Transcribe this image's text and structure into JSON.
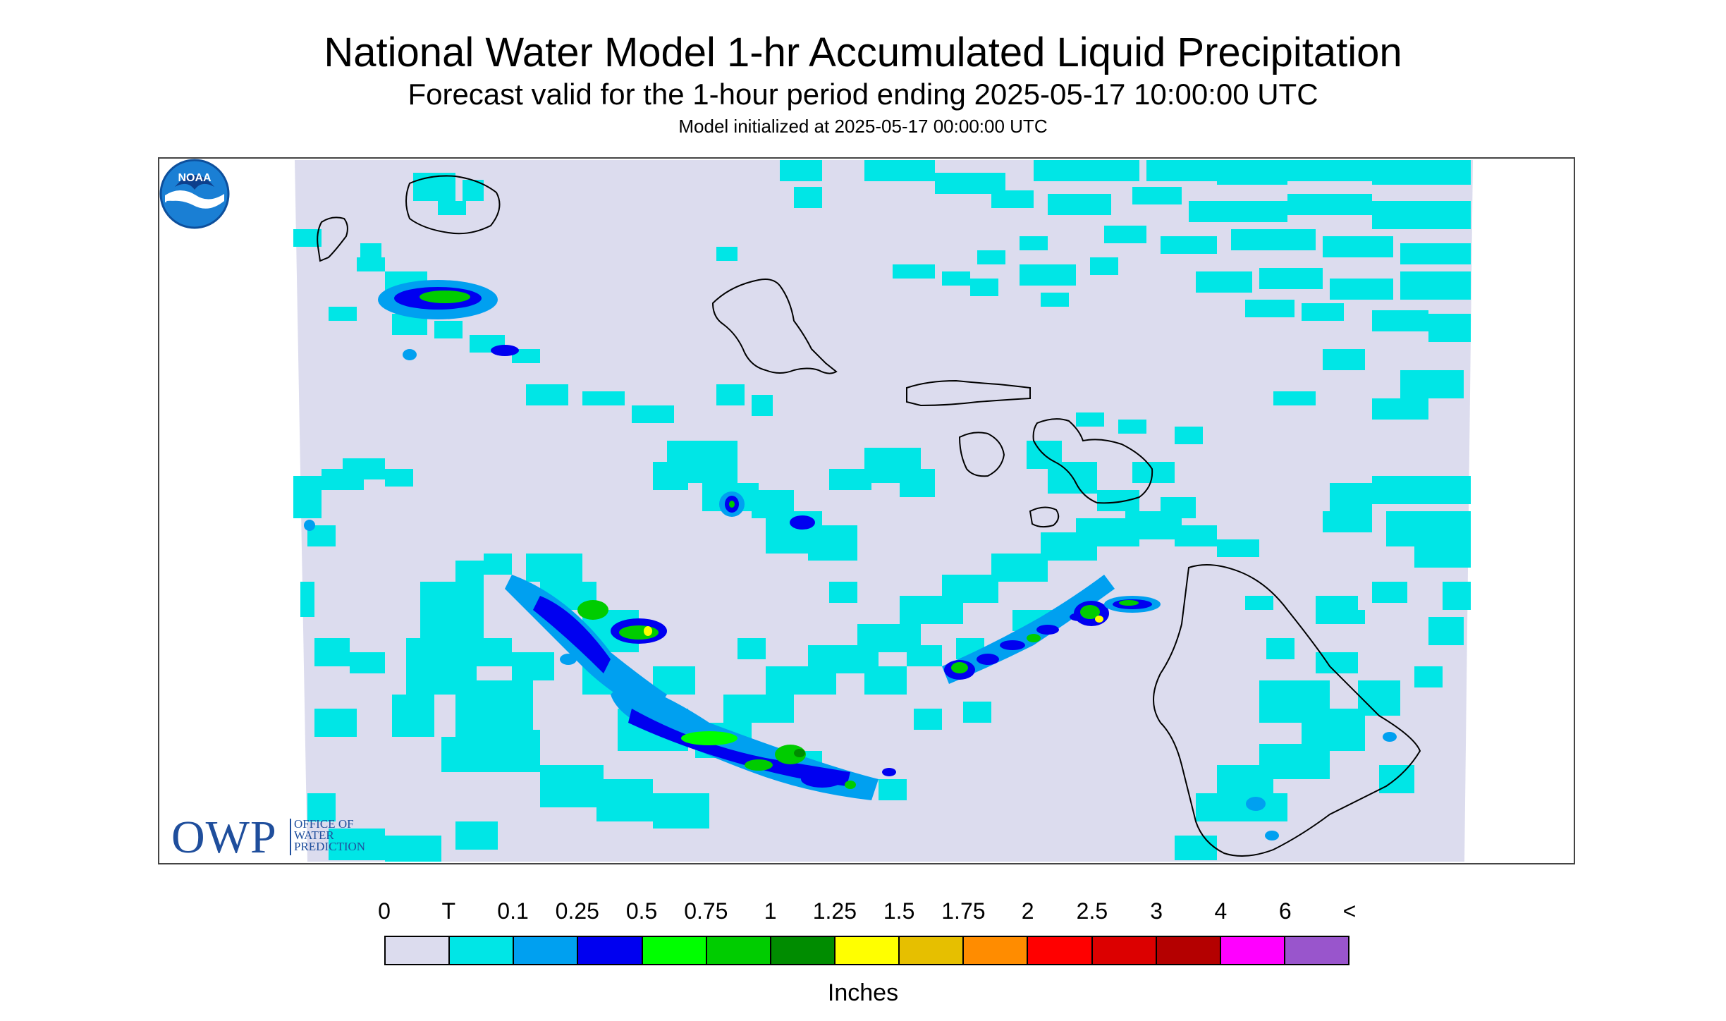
{
  "header": {
    "title": "National Water Model 1-hr Accumulated Liquid Precipitation",
    "subtitle": "Forecast valid for the 1-hour period ending 2025-05-17 10:00:00 UTC",
    "init": "Model initialized at 2025-05-17 00:00:00 UTC"
  },
  "map": {
    "background_color": "#dcdcee",
    "coastline_color": "#000000"
  },
  "logos": {
    "owp_abbrev": "OWP",
    "owp_line1": "OFFICE OF",
    "owp_line2": "WATER",
    "owp_line3": "PREDICTION",
    "noaa_text": "NOAA"
  },
  "legend": {
    "labels": [
      "0",
      "T",
      "0.1",
      "0.25",
      "0.5",
      "0.75",
      "1",
      "1.25",
      "1.5",
      "1.75",
      "2",
      "2.5",
      "3",
      "4",
      "6",
      "<"
    ],
    "colors": [
      "#dcdcee",
      "#00e6e6",
      "#00a0f0",
      "#0000f0",
      "#00ff00",
      "#00cc00",
      "#008c00",
      "#ffff00",
      "#e6bf00",
      "#ff8c00",
      "#ff0000",
      "#dc0000",
      "#b40000",
      "#ff00ff",
      "#9955cc"
    ],
    "units": "Inches"
  }
}
